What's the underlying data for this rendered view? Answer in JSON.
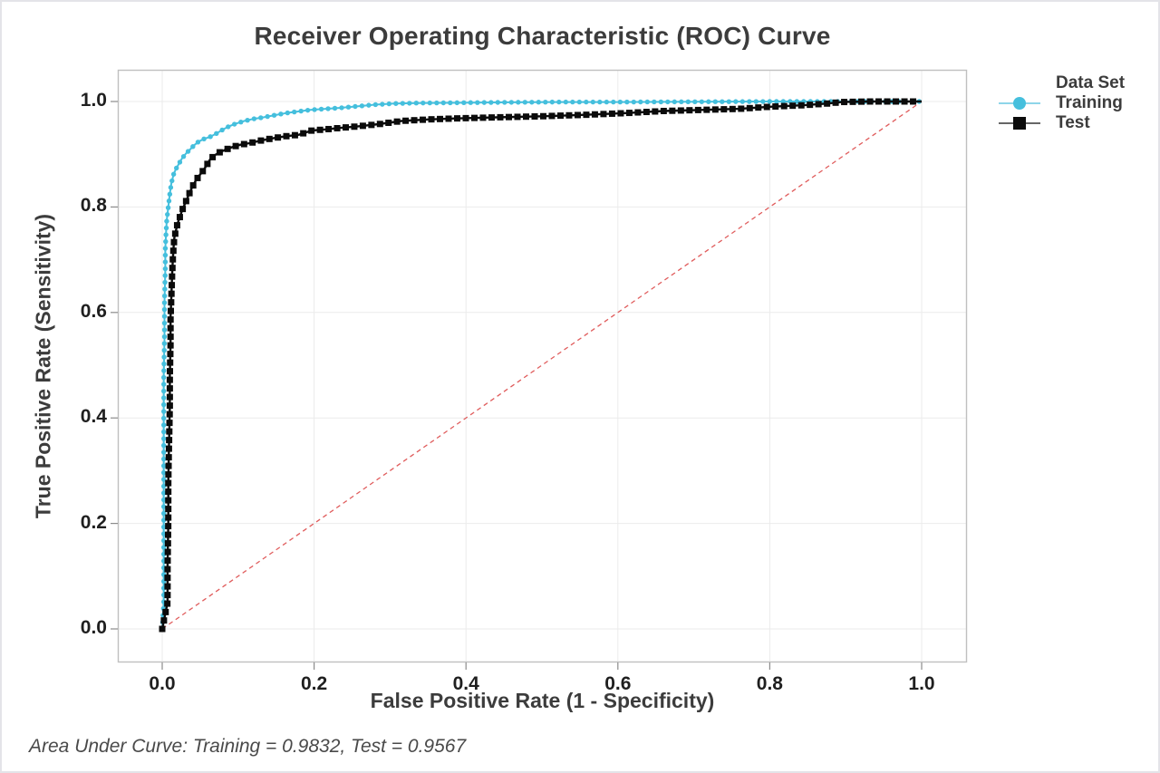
{
  "title": "Receiver Operating Characteristic (ROC) Curve",
  "footer": "Area Under Curve: Training = 0.9832, Test = 0.9567",
  "chart_data": {
    "type": "line",
    "title": "Receiver Operating Characteristic (ROC) Curve",
    "xlabel": "False Positive Rate (1 - Specificity)",
    "ylabel": "True Positive Rate (Sensitivity)",
    "xlim": [
      0,
      1
    ],
    "ylim": [
      0,
      1
    ],
    "grid": true,
    "grid_color": "#ebebeb",
    "frame_color": "#c0c0c0",
    "tick_color": "#8c8c8c",
    "xticks": [
      {
        "v": 0.0,
        "label": "0.0"
      },
      {
        "v": 0.2,
        "label": "0.2"
      },
      {
        "v": 0.4,
        "label": "0.4"
      },
      {
        "v": 0.6,
        "label": "0.6"
      },
      {
        "v": 0.8,
        "label": "0.8"
      },
      {
        "v": 1.0,
        "label": "1.0"
      }
    ],
    "yticks": [
      {
        "v": 0.0,
        "label": "0.0"
      },
      {
        "v": 0.2,
        "label": "0.2"
      },
      {
        "v": 0.4,
        "label": "0.4"
      },
      {
        "v": 0.6,
        "label": "0.6"
      },
      {
        "v": 0.8,
        "label": "0.8"
      },
      {
        "v": 1.0,
        "label": "1.0"
      }
    ],
    "reference_line": {
      "name": "chance-diagonal",
      "style": "dashed",
      "color": "#e05c5c",
      "from": [
        0,
        0
      ],
      "to": [
        1,
        1
      ]
    },
    "legend": {
      "title": "Data Set",
      "position": "right-top",
      "entries": [
        {
          "name": "Training",
          "marker": "circle",
          "color": "#45bfdd",
          "line_color": "#8ed5e9"
        },
        {
          "name": "Test",
          "marker": "square",
          "color": "#0b0b0b",
          "line_color": "#666666"
        }
      ]
    },
    "auc": {
      "Training": 0.9832,
      "Test": 0.9567
    },
    "series": [
      {
        "name": "Training",
        "color": "#45bfdd",
        "marker": "circle",
        "marker_size": 2.7,
        "marker_spacing": 7.5,
        "line_width": 2,
        "points": [
          [
            0.0,
            0.0
          ],
          [
            0.002,
            0.05
          ],
          [
            0.002,
            0.12
          ],
          [
            0.002,
            0.2
          ],
          [
            0.002,
            0.3
          ],
          [
            0.002,
            0.4
          ],
          [
            0.002,
            0.48
          ],
          [
            0.003,
            0.55
          ],
          [
            0.003,
            0.62
          ],
          [
            0.004,
            0.68
          ],
          [
            0.004,
            0.72
          ],
          [
            0.005,
            0.75
          ],
          [
            0.006,
            0.775
          ],
          [
            0.008,
            0.8
          ],
          [
            0.01,
            0.825
          ],
          [
            0.012,
            0.845
          ],
          [
            0.015,
            0.862
          ],
          [
            0.018,
            0.872
          ],
          [
            0.022,
            0.882
          ],
          [
            0.026,
            0.892
          ],
          [
            0.031,
            0.901
          ],
          [
            0.036,
            0.908
          ],
          [
            0.042,
            0.917
          ],
          [
            0.048,
            0.924
          ],
          [
            0.055,
            0.929
          ],
          [
            0.063,
            0.933
          ],
          [
            0.071,
            0.939
          ],
          [
            0.079,
            0.946
          ],
          [
            0.088,
            0.953
          ],
          [
            0.097,
            0.958
          ],
          [
            0.108,
            0.963
          ],
          [
            0.12,
            0.967
          ],
          [
            0.133,
            0.97
          ],
          [
            0.148,
            0.974
          ],
          [
            0.163,
            0.978
          ],
          [
            0.178,
            0.981
          ],
          [
            0.195,
            0.984
          ],
          [
            0.215,
            0.986
          ],
          [
            0.235,
            0.988
          ],
          [
            0.258,
            0.991
          ],
          [
            0.28,
            0.994
          ],
          [
            0.305,
            0.996
          ],
          [
            0.335,
            0.997
          ],
          [
            0.37,
            0.9975
          ],
          [
            0.41,
            0.998
          ],
          [
            0.46,
            0.9985
          ],
          [
            0.52,
            0.999
          ],
          [
            0.6,
            0.999
          ],
          [
            0.7,
            0.9995
          ],
          [
            0.8,
            1.0
          ],
          [
            0.89,
            1.0
          ],
          [
            1.0,
            1.0
          ]
        ]
      },
      {
        "name": "Test",
        "color": "#0b0b0b",
        "marker": "square",
        "marker_size": 7,
        "marker_spacing": 9.5,
        "line_width": 2.4,
        "points": [
          [
            0.0,
            0.0
          ],
          [
            0.007,
            0.05
          ],
          [
            0.007,
            0.12
          ],
          [
            0.008,
            0.2
          ],
          [
            0.008,
            0.28
          ],
          [
            0.009,
            0.35
          ],
          [
            0.01,
            0.42
          ],
          [
            0.01,
            0.48
          ],
          [
            0.011,
            0.54
          ],
          [
            0.011,
            0.59
          ],
          [
            0.012,
            0.63
          ],
          [
            0.013,
            0.67
          ],
          [
            0.014,
            0.7
          ],
          [
            0.015,
            0.725
          ],
          [
            0.016,
            0.742
          ],
          [
            0.018,
            0.755
          ],
          [
            0.02,
            0.768
          ],
          [
            0.023,
            0.78
          ],
          [
            0.026,
            0.793
          ],
          [
            0.03,
            0.806
          ],
          [
            0.034,
            0.82
          ],
          [
            0.038,
            0.833
          ],
          [
            0.043,
            0.847
          ],
          [
            0.048,
            0.858
          ],
          [
            0.053,
            0.867
          ],
          [
            0.058,
            0.878
          ],
          [
            0.063,
            0.89
          ],
          [
            0.069,
            0.898
          ],
          [
            0.076,
            0.904
          ],
          [
            0.084,
            0.909
          ],
          [
            0.093,
            0.914
          ],
          [
            0.103,
            0.918
          ],
          [
            0.115,
            0.921
          ],
          [
            0.13,
            0.926
          ],
          [
            0.145,
            0.93
          ],
          [
            0.162,
            0.934
          ],
          [
            0.18,
            0.937
          ],
          [
            0.197,
            0.945
          ],
          [
            0.215,
            0.947
          ],
          [
            0.235,
            0.95
          ],
          [
            0.258,
            0.953
          ],
          [
            0.285,
            0.957
          ],
          [
            0.315,
            0.963
          ],
          [
            0.35,
            0.966
          ],
          [
            0.39,
            0.968
          ],
          [
            0.44,
            0.97
          ],
          [
            0.5,
            0.972
          ],
          [
            0.56,
            0.975
          ],
          [
            0.61,
            0.978
          ],
          [
            0.66,
            0.982
          ],
          [
            0.71,
            0.984
          ],
          [
            0.76,
            0.986
          ],
          [
            0.8,
            0.99
          ],
          [
            0.845,
            0.993
          ],
          [
            0.875,
            0.996
          ],
          [
            0.895,
            0.999
          ],
          [
            0.93,
            1.0
          ],
          [
            1.0,
            1.0
          ]
        ]
      }
    ]
  }
}
